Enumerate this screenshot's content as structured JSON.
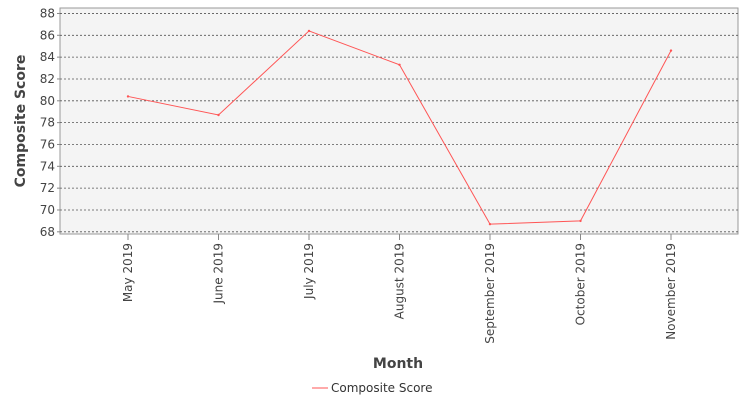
{
  "chart_data": {
    "type": "line",
    "title": "",
    "xlabel": "Month",
    "ylabel": "Composite Score",
    "categories": [
      "May 2019",
      "June 2019",
      "July 2019",
      "August 2019",
      "September 2019",
      "October 2019",
      "November 2019"
    ],
    "series": [
      {
        "name": "Composite Score",
        "color": "#ff5555",
        "values": [
          80.4,
          78.7,
          86.4,
          83.3,
          68.7,
          69.0,
          84.6
        ]
      }
    ],
    "ylim": [
      67.8,
      88.5
    ],
    "yticks": [
      68,
      70,
      72,
      74,
      76,
      78,
      80,
      82,
      84,
      86,
      88
    ],
    "grid": true,
    "legend_position": "bottom"
  }
}
